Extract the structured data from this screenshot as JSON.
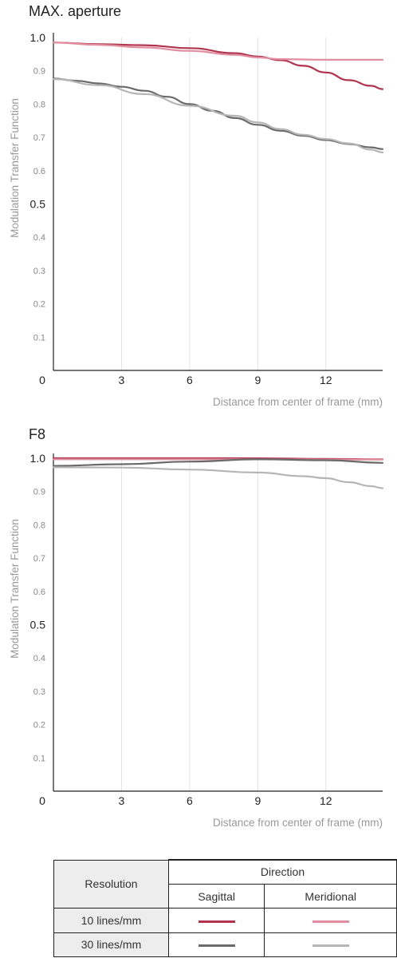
{
  "chart_data": [
    {
      "type": "line",
      "title": "MAX. aperture",
      "xlabel": "Distance from center of frame (mm)",
      "ylabel": "Modulation Transfer Function",
      "xlim": [
        0,
        14.5
      ],
      "ylim": [
        0,
        1.0
      ],
      "x_ticks": [
        "0",
        "3",
        "6",
        "9",
        "12"
      ],
      "y_ticks": [
        "1.0",
        "0.9",
        "0.8",
        "0.7",
        "0.6",
        "0.5",
        "0.4",
        "0.3",
        "0.2",
        "0.1"
      ],
      "series": [
        {
          "color": "#b0344e",
          "points": [
            [
              0,
              0.985
            ],
            [
              2,
              0.98
            ],
            [
              4,
              0.977
            ],
            [
              6,
              0.968
            ],
            [
              8,
              0.953
            ],
            [
              9,
              0.943
            ],
            [
              10,
              0.932
            ],
            [
              11,
              0.915
            ],
            [
              12,
              0.895
            ],
            [
              13,
              0.872
            ],
            [
              14,
              0.855
            ],
            [
              14.5,
              0.845
            ]
          ]
        },
        {
          "color": "#e08ea0",
          "points": [
            [
              0,
              0.985
            ],
            [
              2,
              0.978
            ],
            [
              4,
              0.97
            ],
            [
              6,
              0.96
            ],
            [
              8,
              0.948
            ],
            [
              9,
              0.94
            ],
            [
              10,
              0.935
            ],
            [
              12,
              0.933
            ],
            [
              14,
              0.933
            ],
            [
              14.5,
              0.933
            ]
          ]
        },
        {
          "color": "#6a6a6a",
          "points": [
            [
              0,
              0.877
            ],
            [
              1,
              0.87
            ],
            [
              2,
              0.862
            ],
            [
              3,
              0.852
            ],
            [
              4,
              0.84
            ],
            [
              5,
              0.822
            ],
            [
              6,
              0.8
            ],
            [
              7,
              0.78
            ],
            [
              8,
              0.758
            ],
            [
              9,
              0.738
            ],
            [
              10,
              0.72
            ],
            [
              11,
              0.705
            ],
            [
              12,
              0.692
            ],
            [
              13,
              0.68
            ],
            [
              14,
              0.67
            ],
            [
              14.5,
              0.665
            ]
          ]
        },
        {
          "color": "#b5b5b5",
          "points": [
            [
              0,
              0.875
            ],
            [
              2,
              0.857
            ],
            [
              4,
              0.83
            ],
            [
              6,
              0.795
            ],
            [
              8,
              0.765
            ],
            [
              9,
              0.745
            ],
            [
              10,
              0.725
            ],
            [
              11,
              0.708
            ],
            [
              12,
              0.695
            ],
            [
              13,
              0.682
            ],
            [
              14,
              0.663
            ],
            [
              14.5,
              0.655
            ]
          ]
        }
      ]
    },
    {
      "type": "line",
      "title": "F8",
      "xlabel": "Distance from center of frame (mm)",
      "ylabel": "Modulation Transfer Function",
      "xlim": [
        0,
        14.5
      ],
      "ylim": [
        0,
        1.0
      ],
      "x_ticks": [
        "0",
        "3",
        "6",
        "9",
        "12"
      ],
      "y_ticks": [
        "1.0",
        "0.9",
        "0.8",
        "0.7",
        "0.6",
        "0.5",
        "0.4",
        "0.3",
        "0.2",
        "0.1"
      ],
      "series": [
        {
          "color": "#b0344e",
          "points": [
            [
              0,
              1.0
            ],
            [
              4,
              1.0
            ],
            [
              8,
              1.0
            ],
            [
              12,
              0.998
            ],
            [
              14.5,
              0.997
            ]
          ]
        },
        {
          "color": "#e08ea0",
          "points": [
            [
              0,
              0.997
            ],
            [
              4,
              0.997
            ],
            [
              8,
              0.997
            ],
            [
              12,
              0.996
            ],
            [
              14.5,
              0.996
            ]
          ]
        },
        {
          "color": "#6a6a6a",
          "points": [
            [
              0,
              0.977
            ],
            [
              3,
              0.982
            ],
            [
              6,
              0.99
            ],
            [
              9,
              0.997
            ],
            [
              12,
              0.994
            ],
            [
              14.5,
              0.986
            ]
          ]
        },
        {
          "color": "#b5b5b5",
          "points": [
            [
              0,
              0.973
            ],
            [
              3,
              0.972
            ],
            [
              6,
              0.966
            ],
            [
              9,
              0.957
            ],
            [
              11,
              0.946
            ],
            [
              12,
              0.94
            ],
            [
              13,
              0.928
            ],
            [
              14,
              0.916
            ],
            [
              14.5,
              0.91
            ]
          ]
        }
      ]
    }
  ],
  "legend": {
    "resolution_label": "Resolution",
    "direction_label": "Direction",
    "sagittal_label": "Sagittal",
    "meridional_label": "Meridional",
    "row_10": "10 lines/mm",
    "row_30": "30 lines/mm",
    "colors": {
      "sag_10": "#b0344e",
      "mer_10": "#e08ea0",
      "sag_30": "#6a6a6a",
      "mer_30": "#b5b5b5"
    }
  }
}
